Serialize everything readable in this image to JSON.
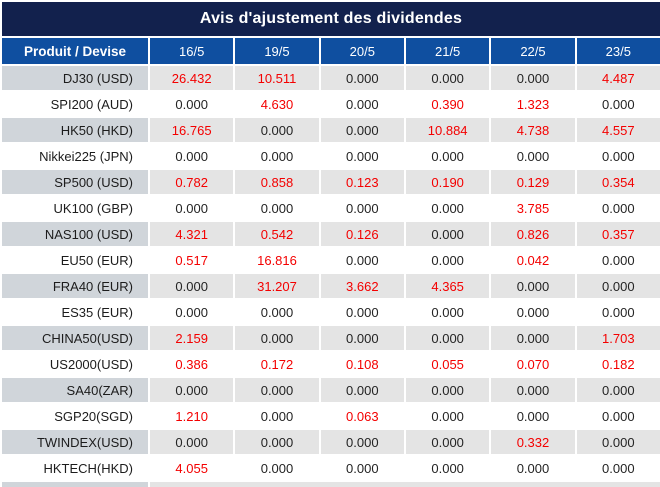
{
  "title": "Avis d'ajustement des dividendes",
  "colors": {
    "title_bar_navy": "#12214d",
    "header_blue": "#0f4fa0",
    "first_column_gray": "#d0d5da",
    "row_gray": "#e4e4e4",
    "value_red": "#f40000",
    "value_black": "#242424",
    "header_text": "#ffffff"
  },
  "table": {
    "header": [
      "Produit / Devise",
      "16/5",
      "19/5",
      "20/5",
      "21/5",
      "22/5",
      "23/5"
    ],
    "rows": [
      {
        "product": "DJ30 (USD)",
        "values": [
          "26.432",
          "10.511",
          "0.000",
          "0.000",
          "0.000",
          "4.487"
        ]
      },
      {
        "product": "SPI200 (AUD)",
        "values": [
          "0.000",
          "4.630",
          "0.000",
          "0.390",
          "1.323",
          "0.000"
        ]
      },
      {
        "product": "HK50 (HKD)",
        "values": [
          "16.765",
          "0.000",
          "0.000",
          "10.884",
          "4.738",
          "4.557"
        ]
      },
      {
        "product": "Nikkei225 (JPN)",
        "values": [
          "0.000",
          "0.000",
          "0.000",
          "0.000",
          "0.000",
          "0.000"
        ]
      },
      {
        "product": "SP500 (USD)",
        "values": [
          "0.782",
          "0.858",
          "0.123",
          "0.190",
          "0.129",
          "0.354"
        ]
      },
      {
        "product": "UK100 (GBP)",
        "values": [
          "0.000",
          "0.000",
          "0.000",
          "0.000",
          "3.785",
          "0.000"
        ]
      },
      {
        "product": "NAS100 (USD)",
        "values": [
          "4.321",
          "0.542",
          "0.126",
          "0.000",
          "0.826",
          "0.357"
        ]
      },
      {
        "product": "EU50 (EUR)",
        "values": [
          "0.517",
          "16.816",
          "0.000",
          "0.000",
          "0.042",
          "0.000"
        ]
      },
      {
        "product": "FRA40 (EUR)",
        "values": [
          "0.000",
          "31.207",
          "3.662",
          "4.365",
          "0.000",
          "0.000"
        ]
      },
      {
        "product": "ES35 (EUR)",
        "values": [
          "0.000",
          "0.000",
          "0.000",
          "0.000",
          "0.000",
          "0.000"
        ]
      },
      {
        "product": "CHINA50(USD)",
        "values": [
          "2.159",
          "0.000",
          "0.000",
          "0.000",
          "0.000",
          "1.703"
        ]
      },
      {
        "product": "US2000(USD)",
        "values": [
          "0.386",
          "0.172",
          "0.108",
          "0.055",
          "0.070",
          "0.182"
        ]
      },
      {
        "product": "SA40(ZAR)",
        "values": [
          "0.000",
          "0.000",
          "0.000",
          "0.000",
          "0.000",
          "0.000"
        ]
      },
      {
        "product": "SGP20(SGD)",
        "values": [
          "1.210",
          "0.000",
          "0.063",
          "0.000",
          "0.000",
          "0.000"
        ]
      },
      {
        "product": "TWINDEX(USD)",
        "values": [
          "0.000",
          "0.000",
          "0.000",
          "0.000",
          "0.332",
          "0.000"
        ]
      },
      {
        "product": "HKTECH(HKD)",
        "values": [
          "4.055",
          "0.000",
          "0.000",
          "0.000",
          "0.000",
          "0.000"
        ]
      }
    ]
  }
}
